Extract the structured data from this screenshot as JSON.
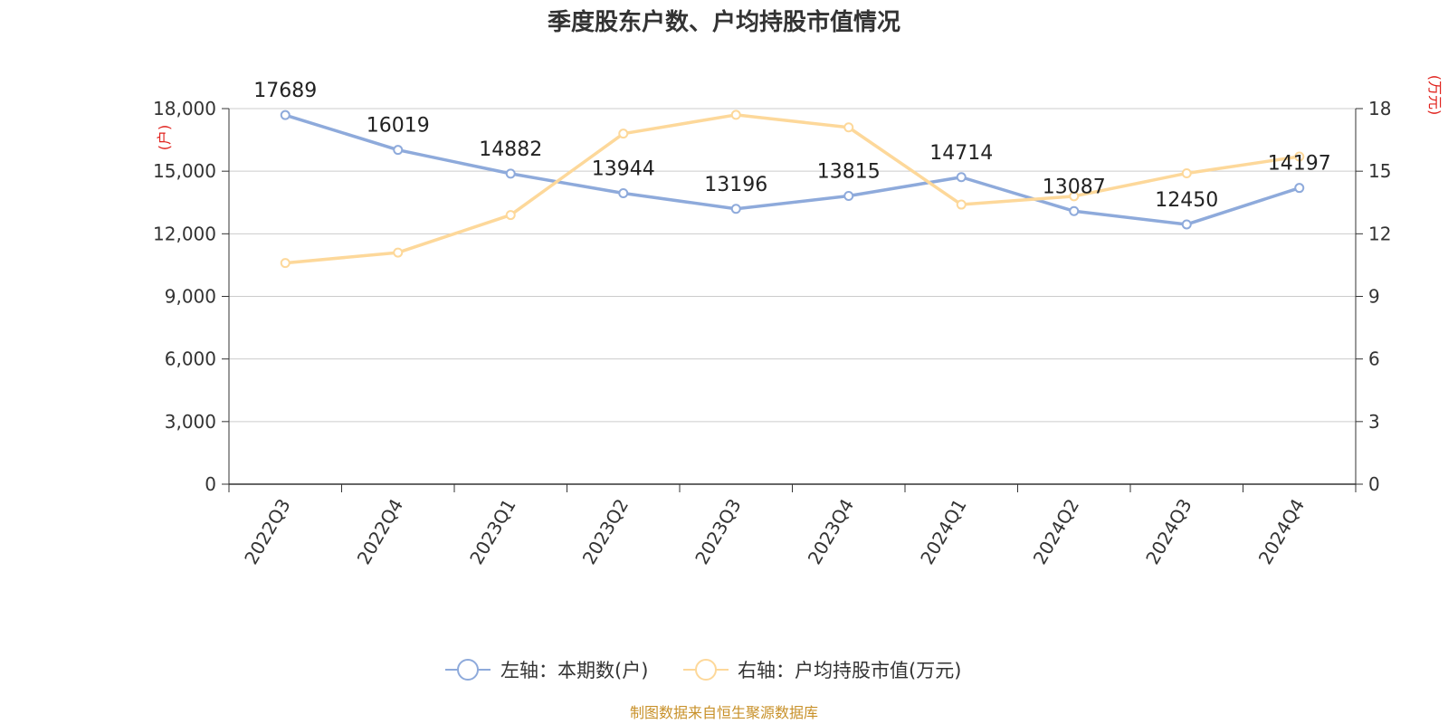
{
  "chart_data": {
    "type": "line",
    "title": "季度股东户数、户均持股市值情况",
    "categories": [
      "2022Q3",
      "2022Q4",
      "2023Q1",
      "2023Q2",
      "2023Q3",
      "2023Q4",
      "2024Q1",
      "2024Q2",
      "2024Q3",
      "2024Q4"
    ],
    "series": [
      {
        "name": "左轴：本期数(户)",
        "axis": "left",
        "color": "#8eaadb",
        "values": [
          17689,
          16019,
          14882,
          13944,
          13196,
          13815,
          14714,
          13087,
          12450,
          14197
        ],
        "labels": [
          "17689",
          "16019",
          "14882",
          "13944",
          "13196",
          "13815",
          "14714",
          "13087",
          "12450",
          "14197"
        ]
      },
      {
        "name": "右轴：户均持股市值(万元)",
        "axis": "right",
        "color": "#fdd89a",
        "values": [
          10.6,
          11.1,
          12.9,
          16.8,
          17.7,
          17.1,
          13.4,
          13.8,
          14.9,
          15.7
        ]
      }
    ],
    "left_axis": {
      "unit": "(户)",
      "ylim": [
        0,
        18000
      ],
      "ticks": [
        0,
        3000,
        6000,
        9000,
        12000,
        15000,
        18000
      ],
      "tick_labels": [
        "0",
        "3,000",
        "6,000",
        "9,000",
        "12,000",
        "15,000",
        "18,000"
      ]
    },
    "right_axis": {
      "unit": "(万元)",
      "ylim": [
        0,
        18
      ],
      "ticks": [
        0,
        3,
        6,
        9,
        12,
        15,
        18
      ],
      "tick_labels": [
        "0",
        "3",
        "6",
        "9",
        "12",
        "15",
        "18"
      ]
    },
    "grid": true,
    "legend_position": "bottom-center"
  },
  "source_text": "制图数据来自恒生聚源数据库"
}
